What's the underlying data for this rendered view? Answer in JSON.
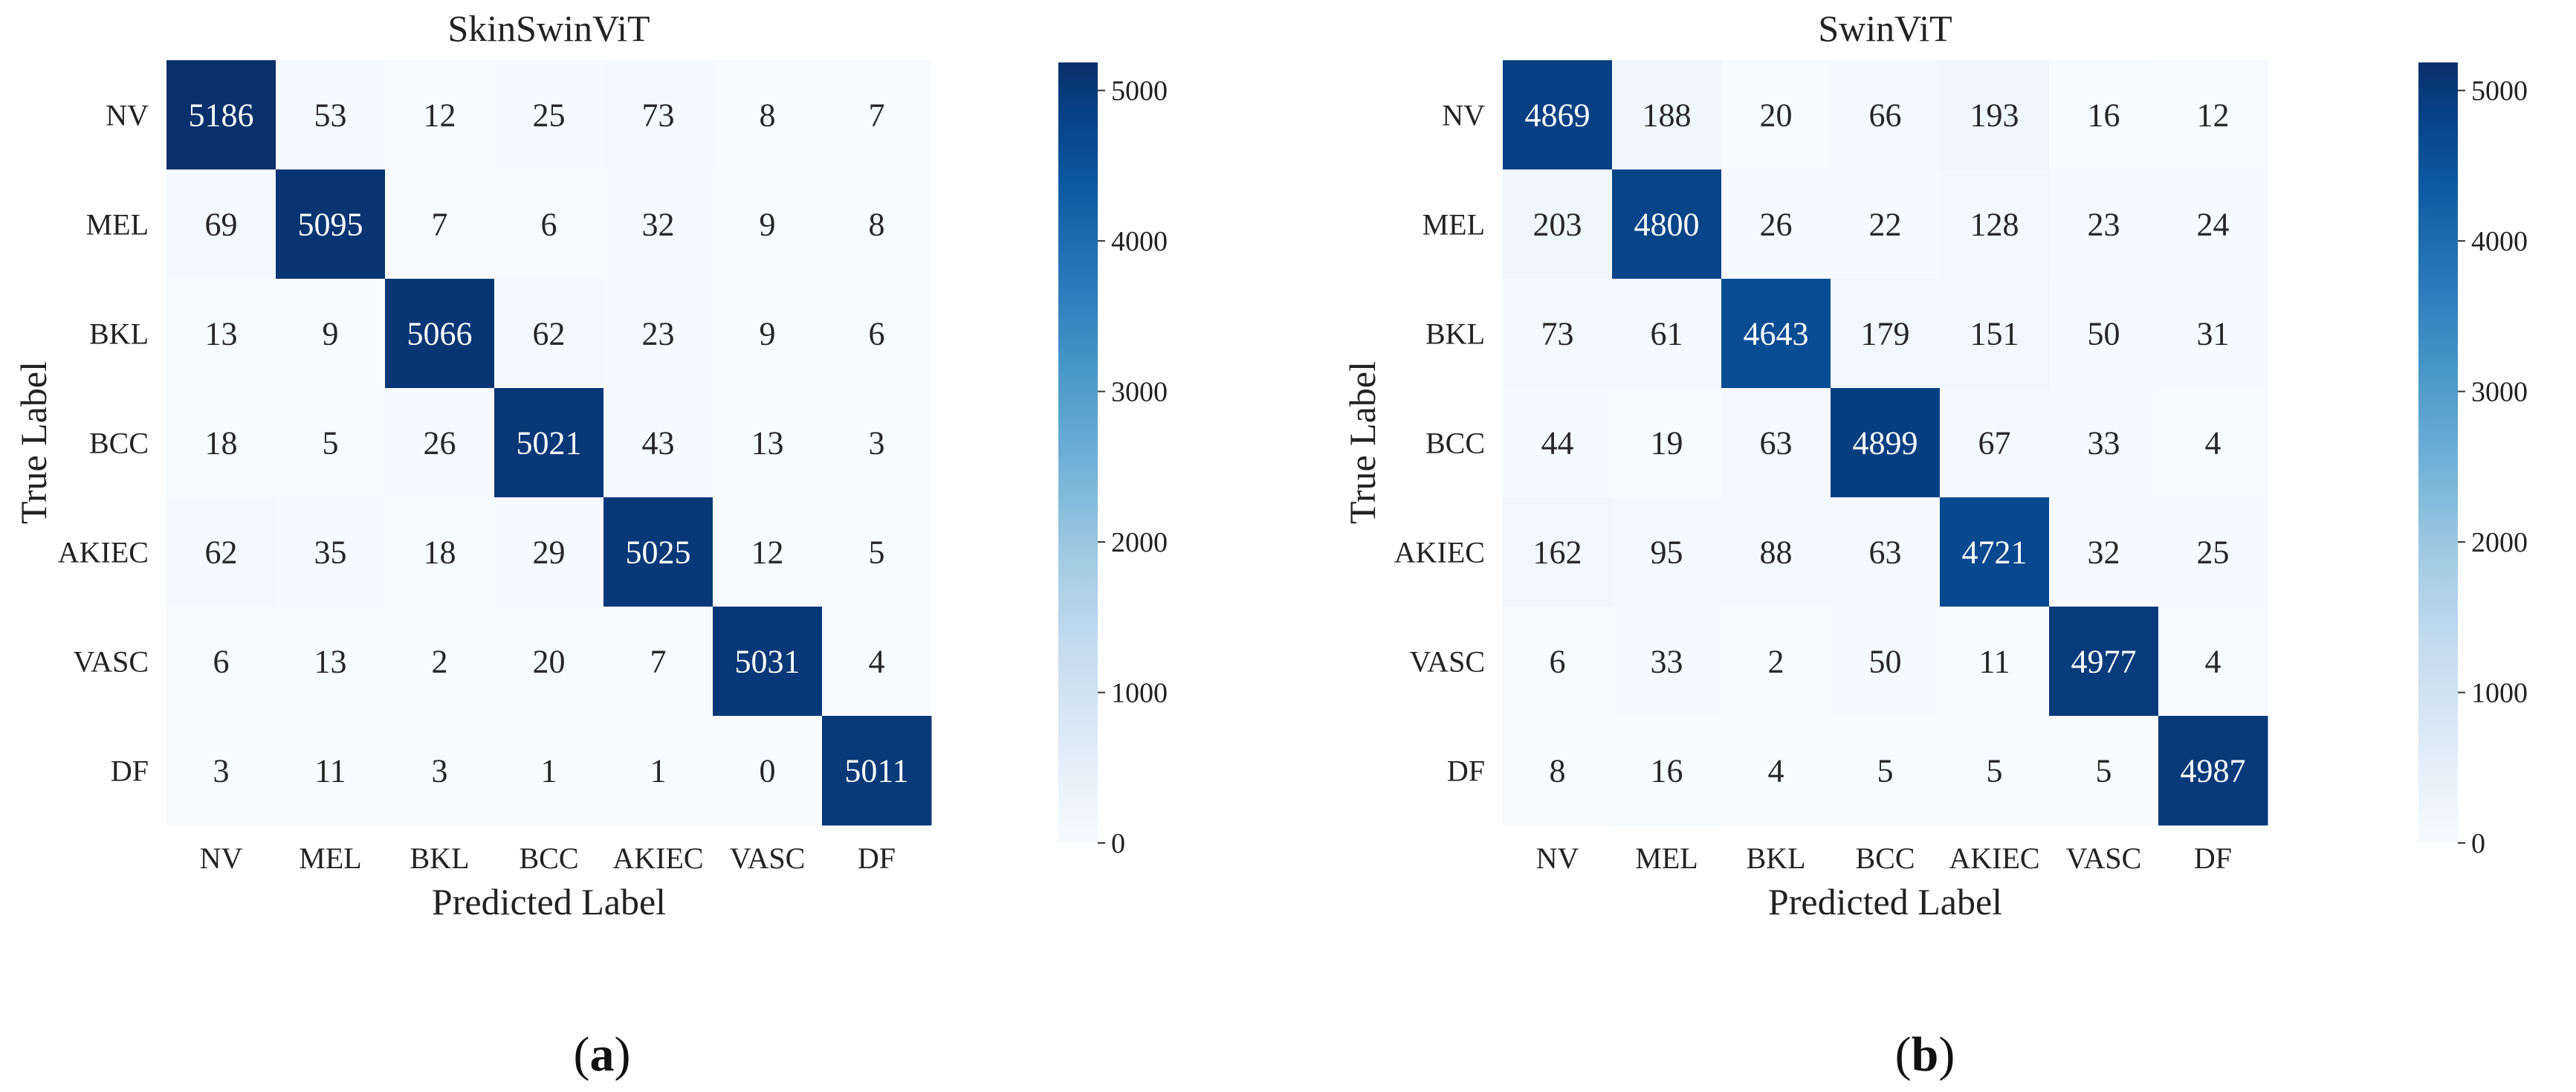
{
  "chart_data": [
    {
      "type": "heatmap",
      "title": "SkinSwinViT",
      "xlabel": "Predicted Label",
      "ylabel": "True Label",
      "x_categories": [
        "NV",
        "MEL",
        "BKL",
        "BCC",
        "AKIEC",
        "VASC",
        "DF"
      ],
      "y_categories": [
        "NV",
        "MEL",
        "BKL",
        "BCC",
        "AKIEC",
        "VASC",
        "DF"
      ],
      "values": [
        [
          5186,
          53,
          12,
          25,
          73,
          8,
          7
        ],
        [
          69,
          5095,
          7,
          6,
          32,
          9,
          8
        ],
        [
          13,
          9,
          5066,
          62,
          23,
          9,
          6
        ],
        [
          18,
          5,
          26,
          5021,
          43,
          13,
          3
        ],
        [
          62,
          35,
          18,
          29,
          5025,
          12,
          5
        ],
        [
          6,
          13,
          2,
          20,
          7,
          5031,
          4
        ],
        [
          3,
          11,
          3,
          1,
          1,
          0,
          5011
        ]
      ],
      "colorbar": {
        "min": 0,
        "max": 5186,
        "ticks": [
          0,
          1000,
          2000,
          3000,
          4000,
          5000
        ],
        "colormap": "Blues"
      },
      "panel_label": {
        "open": "(",
        "letter": "a",
        "close": ")"
      }
    },
    {
      "type": "heatmap",
      "title": "SwinViT",
      "xlabel": "Predicted Label",
      "ylabel": "True Label",
      "x_categories": [
        "NV",
        "MEL",
        "BKL",
        "BCC",
        "AKIEC",
        "VASC",
        "DF"
      ],
      "y_categories": [
        "NV",
        "MEL",
        "BKL",
        "BCC",
        "AKIEC",
        "VASC",
        "DF"
      ],
      "values": [
        [
          4869,
          188,
          20,
          66,
          193,
          16,
          12
        ],
        [
          203,
          4800,
          26,
          22,
          128,
          23,
          24
        ],
        [
          73,
          61,
          4643,
          179,
          151,
          50,
          31
        ],
        [
          44,
          19,
          63,
          4899,
          67,
          33,
          4
        ],
        [
          162,
          95,
          88,
          63,
          4721,
          32,
          25
        ],
        [
          6,
          33,
          2,
          50,
          11,
          4977,
          4
        ],
        [
          8,
          16,
          4,
          5,
          5,
          5,
          4987
        ]
      ],
      "colorbar": {
        "min": 0,
        "max": 5186,
        "ticks": [
          0,
          1000,
          2000,
          3000,
          4000,
          5000
        ],
        "colormap": "Blues"
      },
      "panel_label": {
        "open": "(",
        "letter": "b",
        "close": ")"
      }
    }
  ]
}
